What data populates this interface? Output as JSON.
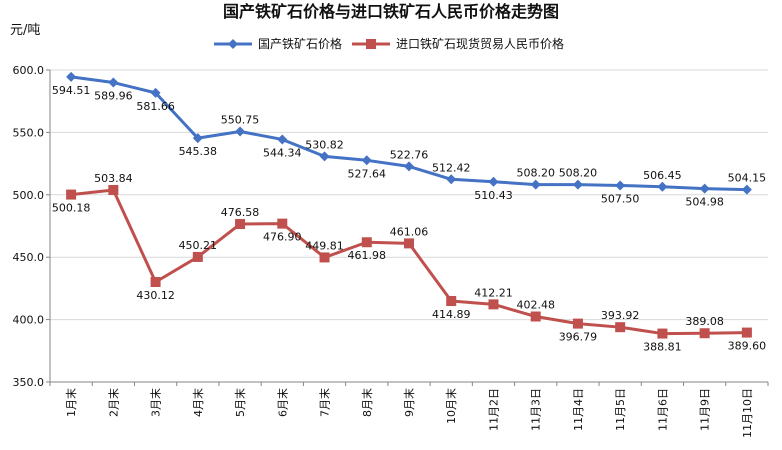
{
  "chart_data": {
    "type": "line",
    "title": "国产铁矿石价格与进口铁矿石人民币价格走势图",
    "ylabel": "元/吨",
    "xlabel": "",
    "ylim": [
      350,
      600
    ],
    "yticks": [
      "350.0",
      "400.0",
      "450.0",
      "500.0",
      "550.0",
      "600.0"
    ],
    "grid": true,
    "legend_position": "top",
    "categories": [
      "1月末",
      "2月末",
      "3月末",
      "4月末",
      "5月末",
      "6月末",
      "7月末",
      "8月末",
      "9月末",
      "10月末",
      "11月2日",
      "11月3日",
      "11月4日",
      "11月5日",
      "11月6日",
      "11月9日",
      "11月10日"
    ],
    "series": [
      {
        "name": "国产铁矿石价格",
        "color": "#4472c4",
        "marker": "diamond",
        "values": [
          594.51,
          589.96,
          581.66,
          545.38,
          550.75,
          544.34,
          530.82,
          527.64,
          522.76,
          512.42,
          510.43,
          508.2,
          508.2,
          507.5,
          506.45,
          504.98,
          504.15
        ],
        "labels": [
          "594.51",
          "589.96",
          "581.66",
          "545.38",
          "550.75",
          "544.34",
          "530.82",
          "527.64",
          "522.76",
          "512.42",
          "510.43",
          "508.20",
          "508.20",
          "507.50",
          "506.45",
          "504.98",
          "504.15"
        ],
        "label_pos": [
          "below",
          "below",
          "below",
          "below",
          "above",
          "below",
          "above",
          "below",
          "above",
          "above",
          "below",
          "above",
          "above",
          "below",
          "above",
          "below",
          "above"
        ]
      },
      {
        "name": "进口铁矿石现货贸易人民币价格",
        "color": "#c0504d",
        "marker": "square",
        "values": [
          500.18,
          503.84,
          430.12,
          450.21,
          476.58,
          476.9,
          449.81,
          461.98,
          461.06,
          414.89,
          412.21,
          402.48,
          396.79,
          393.92,
          388.81,
          389.08,
          389.6
        ],
        "labels": [
          "500.18",
          "503.84",
          "430.12",
          "450.21",
          "476.58",
          "476.90",
          "449.81",
          "461.98",
          "461.06",
          "414.89",
          "412.21",
          "402.48",
          "396.79",
          "393.92",
          "388.81",
          "389.08",
          "389.60"
        ],
        "label_pos": [
          "below",
          "above",
          "below",
          "above",
          "above",
          "below",
          "above",
          "below",
          "above",
          "below",
          "above",
          "above",
          "below",
          "above",
          "below",
          "above",
          "below"
        ]
      }
    ]
  }
}
